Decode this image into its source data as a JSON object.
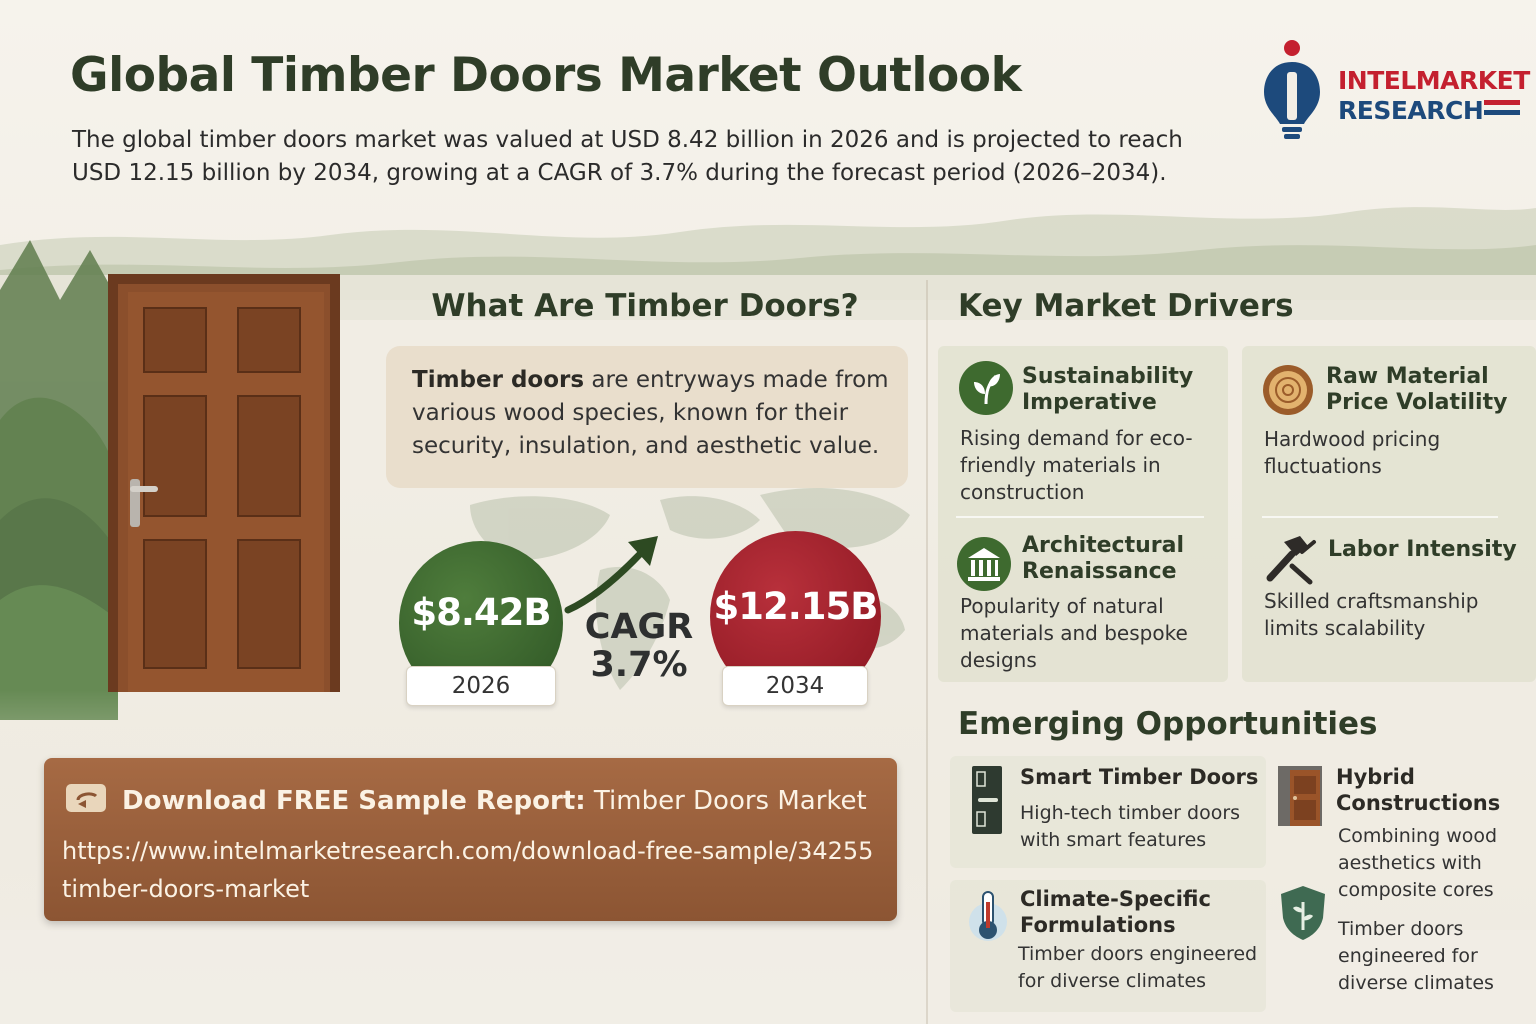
{
  "header": {
    "title": "Global Timber Doors Market Outlook",
    "intro": "The global timber doors market was valued at USD 8.42 billion in 2026 and is projected to reach USD 12.15 billion by 2034, growing at a CAGR of 3.7% during the forecast period (2026–2034)."
  },
  "logo": {
    "line1": "INTELMARKET",
    "line2": "RESEARCH"
  },
  "what": {
    "title": "What Are Timber Doors?",
    "lead": "Timber doors",
    "text": " are entryways made from various wood species, known for their security, insulation, and aesthetic value."
  },
  "market": {
    "start_value": "$8.42B",
    "start_year": "2026",
    "end_value": "$12.15B",
    "end_year": "2034",
    "cagr_label": "CAGR",
    "cagr_value": "3.7%"
  },
  "download": {
    "title_bold": "Download FREE Sample Report:",
    "title_rest": " Timber Doors Market",
    "url": "https://www.intelmarketresearch.com/download-free-sample/34255 timber-doors-market"
  },
  "drivers": {
    "title": "Key Market Drivers",
    "items": [
      {
        "icon": "leaf-icon",
        "title": "Sustainability Imperative",
        "text": "Rising demand for eco-friendly materials in construction"
      },
      {
        "icon": "wood-log-icon",
        "title": "Raw Material Price Volatility",
        "text": "Hardwood pricing fluctuations"
      },
      {
        "icon": "columns-building-icon",
        "title": "Architectural Renaissance",
        "text": "Popularity of natural materials and bespoke designs"
      },
      {
        "icon": "hammer-tools-icon",
        "title": "Labor Intensity",
        "text": "Skilled craftsmanship limits scalability"
      }
    ]
  },
  "opportunities": {
    "title": "Emerging Opportunities",
    "items": [
      {
        "icon": "smart-door-icon",
        "title": "Smart Timber Doors",
        "text": "High-tech timber doors with smart features"
      },
      {
        "icon": "hybrid-door-icon",
        "title": "Hybrid Constructions",
        "text": "Combining wood aesthetics with composite cores"
      },
      {
        "icon": "thermometer-icon",
        "title": "Climate-Specific Formulations",
        "text": "Timber doors engineered for diverse climates"
      },
      {
        "icon": "shield-leaf-icon",
        "title": "",
        "text": "Timber doors engineered for diverse climates"
      }
    ]
  },
  "colors": {
    "accent_green": "#2d5424",
    "accent_red": "#8a1620",
    "brown": "#8c5533"
  }
}
